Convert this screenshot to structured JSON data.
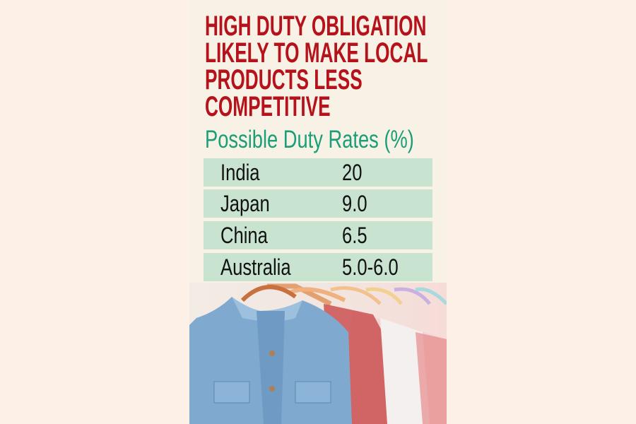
{
  "title_lines": [
    "HIGH DUTY OBLIGATION",
    "LIKELY TO MAKE LOCAL",
    "PRODUCTS LESS",
    "COMPETITIVE"
  ],
  "subtitle": "Possible Duty Rates (%)",
  "chart_data": {
    "type": "table",
    "title": "HIGH DUTY OBLIGATION LIKELY TO MAKE LOCAL PRODUCTS LESS COMPETITIVE",
    "subtitle": "Possible Duty Rates (%)",
    "rows": [
      {
        "country": "India",
        "rate": "20"
      },
      {
        "country": "Japan",
        "rate": "9.0"
      },
      {
        "country": "China",
        "rate": "6.5"
      },
      {
        "country": "Australia",
        "rate": "5.0-6.0"
      }
    ]
  },
  "colors": {
    "title": "#b5121b",
    "subtitle": "#1a9e78",
    "row_background": "#c8e4d0",
    "panel_background": "#f7f2e5"
  },
  "image": "clothes-on-hangers-photo"
}
